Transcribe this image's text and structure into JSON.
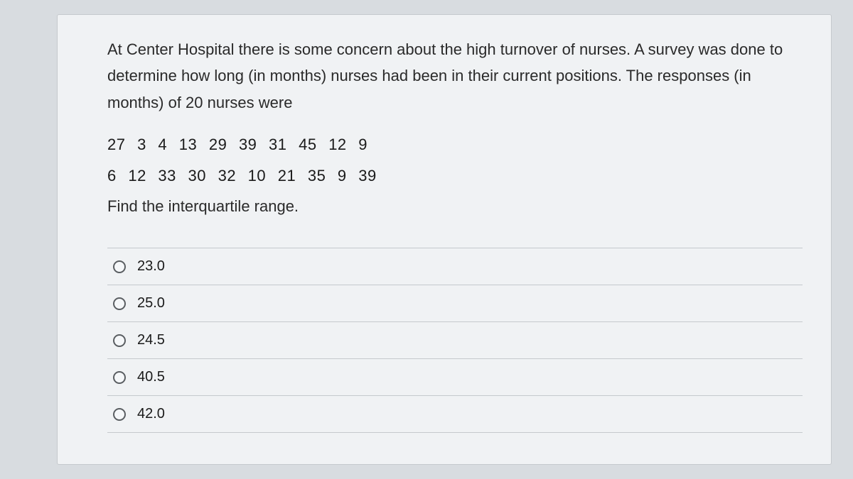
{
  "question": {
    "intro": "At Center Hospital there is some concern about the high turnover of nurses. A survey was done to determine how long (in months) nurses had been in their current positions. The responses (in months) of 20 nurses were",
    "data_row1": "27  3   4   13   29  39   31   45   12  9",
    "data_row2": "6   12  33  30   32  10   21   35   9   39",
    "prompt": "Find the interquartile range."
  },
  "options": [
    {
      "label": "23.0"
    },
    {
      "label": "25.0"
    },
    {
      "label": "24.5"
    },
    {
      "label": "40.5"
    },
    {
      "label": "42.0"
    }
  ],
  "styling": {
    "background_color": "#d8dce0",
    "card_background": "#f0f2f4",
    "border_color": "#c5c9cd",
    "text_color": "#2a2a2a",
    "font_size_body": 22,
    "font_size_option": 20,
    "radio_border_color": "#5a5e62"
  }
}
